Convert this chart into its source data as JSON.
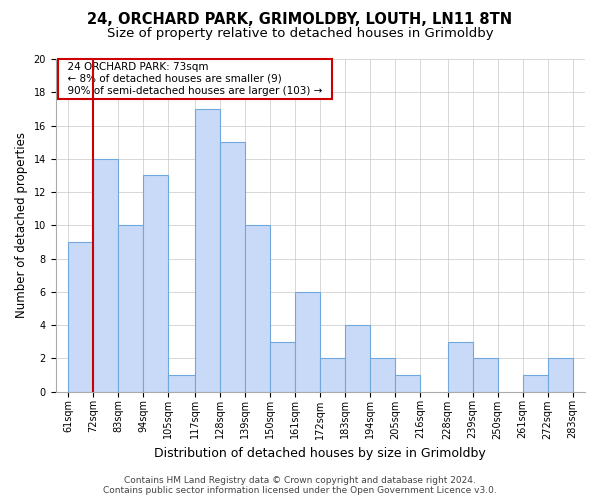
{
  "title": "24, ORCHARD PARK, GRIMOLDBY, LOUTH, LN11 8TN",
  "subtitle": "Size of property relative to detached houses in Grimoldby",
  "xlabel": "Distribution of detached houses by size in Grimoldby",
  "ylabel": "Number of detached properties",
  "bin_edges": [
    61,
    72,
    83,
    94,
    105,
    117,
    128,
    139,
    150,
    161,
    172,
    183,
    194,
    205,
    216,
    228,
    239,
    250,
    261,
    272,
    283
  ],
  "counts": [
    9,
    14,
    10,
    13,
    1,
    17,
    15,
    10,
    3,
    6,
    2,
    4,
    2,
    1,
    0,
    3,
    2,
    0,
    1,
    2
  ],
  "bar_color": "#c9daf8",
  "bar_edge_color": "#6fa8dc",
  "bar_linewidth": 0.8,
  "vline_x": 72,
  "vline_color": "#cc0000",
  "vline_linewidth": 1.5,
  "ylim": [
    0,
    20
  ],
  "yticks": [
    0,
    2,
    4,
    6,
    8,
    10,
    12,
    14,
    16,
    18,
    20
  ],
  "annotation_title": "24 ORCHARD PARK: 73sqm",
  "annotation_line1": "← 8% of detached houses are smaller (9)",
  "annotation_line2": "90% of semi-detached houses are larger (103) →",
  "annotation_box_color": "#ffffff",
  "annotation_box_edge_color": "#cc0000",
  "footer_line1": "Contains HM Land Registry data © Crown copyright and database right 2024.",
  "footer_line2": "Contains public sector information licensed under the Open Government Licence v3.0.",
  "bg_color": "#ffffff",
  "grid_color": "#c8c8c8",
  "title_fontsize": 10.5,
  "subtitle_fontsize": 9.5,
  "axis_label_fontsize": 8.5,
  "tick_fontsize": 7,
  "annotation_fontsize": 7.5,
  "footer_fontsize": 6.5
}
